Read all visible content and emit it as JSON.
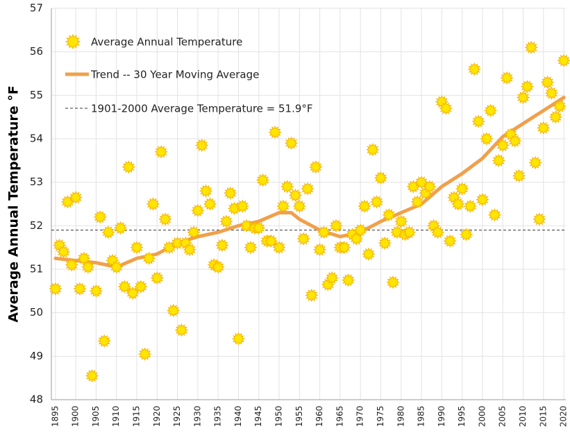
{
  "chart_data": {
    "type": "scatter",
    "ylabel": "Average Annual Temperature °F",
    "x": [
      1895,
      1896,
      1897,
      1898,
      1899,
      1900,
      1901,
      1902,
      1903,
      1904,
      1905,
      1906,
      1907,
      1908,
      1909,
      1910,
      1911,
      1912,
      1913,
      1914,
      1915,
      1916,
      1917,
      1918,
      1919,
      1920,
      1921,
      1922,
      1923,
      1924,
      1925,
      1926,
      1927,
      1928,
      1929,
      1930,
      1931,
      1932,
      1933,
      1934,
      1935,
      1936,
      1937,
      1938,
      1939,
      1940,
      1941,
      1942,
      1943,
      1944,
      1945,
      1946,
      1947,
      1948,
      1949,
      1950,
      1951,
      1952,
      1953,
      1954,
      1955,
      1956,
      1957,
      1958,
      1959,
      1960,
      1961,
      1962,
      1963,
      1964,
      1965,
      1966,
      1967,
      1968,
      1969,
      1970,
      1971,
      1972,
      1973,
      1974,
      1975,
      1976,
      1977,
      1978,
      1979,
      1980,
      1981,
      1982,
      1983,
      1984,
      1985,
      1986,
      1987,
      1988,
      1989,
      1990,
      1991,
      1992,
      1993,
      1994,
      1995,
      1996,
      1997,
      1998,
      1999,
      2000,
      2001,
      2002,
      2003,
      2004,
      2005,
      2006,
      2007,
      2008,
      2009,
      2010,
      2011,
      2012,
      2013,
      2014,
      2015,
      2016,
      2017,
      2018,
      2019,
      2020
    ],
    "series": [
      {
        "name": "Average Annual Temperature",
        "color": "#ffe600",
        "stroke": "#f5b400",
        "values": [
          50.55,
          51.55,
          51.4,
          52.55,
          51.1,
          52.65,
          50.55,
          51.25,
          51.05,
          48.55,
          50.5,
          52.2,
          49.35,
          51.85,
          51.2,
          51.05,
          51.95,
          50.6,
          53.35,
          50.45,
          51.5,
          50.6,
          49.05,
          51.25,
          52.5,
          50.8,
          53.7,
          52.15,
          51.5,
          50.05,
          51.6,
          49.6,
          51.6,
          51.45,
          51.85,
          52.35,
          53.85,
          52.8,
          52.5,
          51.1,
          51.05,
          51.55,
          52.1,
          52.75,
          52.4,
          49.4,
          52.45,
          52.0,
          51.5,
          51.95,
          51.95,
          53.05,
          51.65,
          51.65,
          54.15,
          51.5,
          52.45,
          52.9,
          53.9,
          52.7,
          52.45,
          51.7,
          52.85,
          50.4,
          53.35,
          51.45,
          51.85,
          50.65,
          50.8,
          52.0,
          51.5,
          51.5,
          50.75,
          51.8,
          51.7,
          51.9,
          52.45,
          51.35,
          53.75,
          52.55,
          53.1,
          51.6,
          52.25,
          50.7,
          51.85,
          52.1,
          51.8,
          51.85,
          52.9,
          52.55,
          53.0,
          52.75,
          52.9,
          52.0,
          51.85,
          54.85,
          54.7,
          51.65,
          52.65,
          52.5,
          52.85,
          51.8,
          52.45,
          55.6,
          54.4,
          52.6,
          54.0,
          54.65,
          52.25,
          53.5,
          53.85,
          55.4,
          54.1,
          53.95,
          53.15,
          54.95,
          55.2,
          56.1,
          53.45,
          52.15,
          54.25,
          55.3,
          55.05,
          54.5,
          54.75,
          55.8
        ]
      },
      {
        "name": "Trend -- 30 Year Moving Average",
        "color": "#f0a04b",
        "x": [
          1895,
          1900,
          1905,
          1910,
          1915,
          1920,
          1925,
          1930,
          1935,
          1940,
          1945,
          1950,
          1953,
          1955,
          1960,
          1965,
          1970,
          1975,
          1980,
          1985,
          1990,
          1995,
          2000,
          2005,
          2010,
          2015,
          2020
        ],
        "values": [
          51.25,
          51.2,
          51.15,
          51.05,
          51.25,
          51.35,
          51.6,
          51.75,
          51.85,
          52.0,
          52.1,
          52.3,
          52.3,
          52.15,
          51.9,
          51.75,
          51.85,
          52.1,
          52.3,
          52.5,
          52.9,
          53.2,
          53.55,
          54.05,
          54.35,
          54.65,
          54.95
        ]
      }
    ],
    "reference_line": {
      "name": "1901-2000 Average Temperature = 51.9°F",
      "value": 51.9,
      "color": "#333333"
    },
    "xlim": [
      1894,
      2020.5
    ],
    "xticks": [
      1895,
      1900,
      1905,
      1910,
      1915,
      1920,
      1925,
      1930,
      1935,
      1940,
      1945,
      1950,
      1955,
      1960,
      1965,
      1970,
      1975,
      1980,
      1985,
      1990,
      1995,
      2000,
      2005,
      2010,
      2015,
      2020
    ],
    "ylim": [
      48,
      57
    ],
    "yticks": [
      48,
      49,
      50,
      51,
      52,
      53,
      54,
      55,
      56,
      57
    ],
    "grid": true,
    "legend": "top-left"
  }
}
